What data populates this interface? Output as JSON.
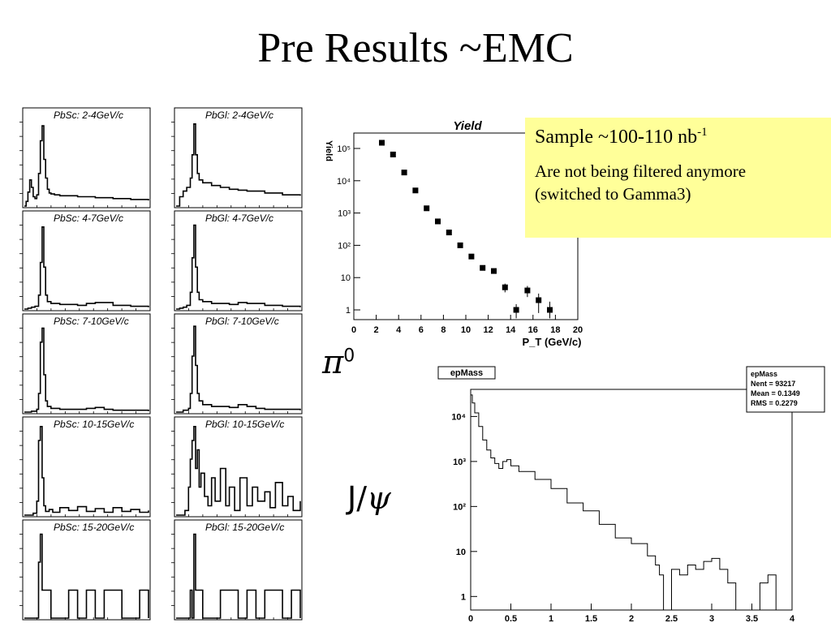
{
  "slide": {
    "title": "Pre Results ~EMC"
  },
  "note": {
    "line1_main": "Sample ~100-110 nb",
    "line1_sup": "-1",
    "line2": "Are not being filtered anymore",
    "line3": "(switched to Gamma3)"
  },
  "labels": {
    "pi0_symbol": "π",
    "pi0_sup": "0",
    "jpsi_prefix": "J/",
    "jpsi_symbol": "ψ"
  },
  "chart_data": [
    {
      "type": "line",
      "title": "PbSc: 2-4GeV/c",
      "x": [
        0,
        0.01,
        0.02,
        0.03,
        0.04,
        0.05,
        0.06,
        0.07,
        0.08,
        0.09,
        0.1,
        0.11,
        0.12,
        0.13,
        0.14,
        0.15,
        0.17,
        0.2,
        0.25,
        0.3,
        0.35,
        0.4,
        0.45,
        0.5,
        0.55,
        0.6,
        0.7
      ],
      "values": [
        0,
        5,
        15,
        28,
        20,
        10,
        8,
        12,
        35,
        70,
        86,
        50,
        30,
        18,
        14,
        13,
        12,
        11,
        11,
        10,
        10,
        9,
        9,
        8,
        8,
        7,
        6
      ],
      "ylim": [
        0,
        100
      ]
    },
    {
      "type": "line",
      "title": "PbGl: 2-4GeV/c",
      "x": [
        0,
        0.02,
        0.04,
        0.06,
        0.08,
        0.09,
        0.1,
        0.11,
        0.12,
        0.13,
        0.15,
        0.2,
        0.25,
        0.3,
        0.35,
        0.4,
        0.5,
        0.6,
        0.7
      ],
      "values": [
        0,
        10,
        16,
        20,
        30,
        55,
        88,
        55,
        35,
        28,
        25,
        22,
        20,
        18,
        17,
        16,
        14,
        12,
        11
      ],
      "ylim": [
        0,
        100
      ]
    },
    {
      "type": "line",
      "title": "PbSc: 4-7GeV/c",
      "x": [
        0,
        0.02,
        0.04,
        0.06,
        0.08,
        0.09,
        0.1,
        0.11,
        0.12,
        0.13,
        0.15,
        0.2,
        0.3,
        0.35,
        0.4,
        0.5,
        0.6,
        0.7
      ],
      "values": [
        0,
        1,
        2,
        3,
        15,
        50,
        88,
        45,
        15,
        8,
        6,
        5,
        4,
        6,
        7,
        4,
        3,
        2
      ],
      "ylim": [
        0,
        100
      ]
    },
    {
      "type": "line",
      "title": "PbGl: 4-7GeV/c",
      "x": [
        0,
        0.02,
        0.04,
        0.06,
        0.08,
        0.09,
        0.1,
        0.11,
        0.12,
        0.13,
        0.15,
        0.2,
        0.3,
        0.35,
        0.4,
        0.5,
        0.6,
        0.7
      ],
      "values": [
        0,
        1,
        2,
        4,
        18,
        55,
        90,
        45,
        18,
        10,
        8,
        6,
        5,
        7,
        6,
        4,
        3,
        2
      ],
      "ylim": [
        0,
        100
      ]
    },
    {
      "type": "line",
      "title": "PbSc: 7-10GeV/c",
      "x": [
        0,
        0.04,
        0.07,
        0.08,
        0.09,
        0.1,
        0.11,
        0.12,
        0.13,
        0.15,
        0.2,
        0.3,
        0.35,
        0.4,
        0.45,
        0.5,
        0.6,
        0.7
      ],
      "values": [
        0,
        1,
        3,
        20,
        75,
        90,
        40,
        12,
        6,
        4,
        3,
        3,
        4,
        5,
        3,
        2,
        2,
        1
      ],
      "ylim": [
        0,
        100
      ]
    },
    {
      "type": "line",
      "title": "PbGl: 7-10GeV/c",
      "x": [
        0,
        0.04,
        0.07,
        0.08,
        0.09,
        0.1,
        0.11,
        0.12,
        0.13,
        0.15,
        0.2,
        0.3,
        0.35,
        0.4,
        0.45,
        0.5,
        0.6,
        0.7
      ],
      "values": [
        0,
        2,
        4,
        20,
        60,
        92,
        50,
        20,
        12,
        8,
        6,
        5,
        8,
        6,
        4,
        3,
        3,
        2
      ],
      "ylim": [
        0,
        100
      ]
    },
    {
      "type": "line",
      "title": "PbSc: 10-15GeV/c",
      "x": [
        0,
        0.05,
        0.07,
        0.08,
        0.09,
        0.1,
        0.11,
        0.12,
        0.14,
        0.16,
        0.2,
        0.25,
        0.3,
        0.35,
        0.4,
        0.45,
        0.5,
        0.55,
        0.6,
        0.65,
        0.7
      ],
      "values": [
        0,
        2,
        15,
        80,
        95,
        40,
        10,
        4,
        6,
        3,
        8,
        5,
        9,
        4,
        7,
        3,
        8,
        4,
        6,
        3,
        5
      ],
      "ylim": [
        0,
        100
      ]
    },
    {
      "type": "line",
      "title": "PbGl: 10-15GeV/c",
      "x": [
        0,
        0.05,
        0.07,
        0.08,
        0.09,
        0.1,
        0.11,
        0.12,
        0.13,
        0.14,
        0.16,
        0.18,
        0.2,
        0.22,
        0.25,
        0.28,
        0.3,
        0.33,
        0.36,
        0.4,
        0.43,
        0.46,
        0.5,
        0.53,
        0.56,
        0.6,
        0.63,
        0.66,
        0.7
      ],
      "values": [
        0,
        5,
        30,
        60,
        80,
        95,
        50,
        70,
        30,
        45,
        20,
        10,
        40,
        15,
        50,
        10,
        30,
        5,
        40,
        10,
        30,
        15,
        25,
        8,
        35,
        10,
        20,
        5,
        15
      ],
      "ylim": [
        0,
        100
      ]
    },
    {
      "type": "line",
      "title": "PbSc: 15-20GeV/c",
      "x": [
        0,
        0.07,
        0.08,
        0.09,
        0.1,
        0.11,
        0.13,
        0.15,
        0.2,
        0.25,
        0.3,
        0.35,
        0.4,
        0.45,
        0.5,
        0.55,
        0.6,
        0.65,
        0.7
      ],
      "values": [
        0,
        0,
        60,
        90,
        30,
        30,
        30,
        0,
        0,
        30,
        0,
        30,
        0,
        30,
        30,
        0,
        0,
        30,
        0
      ],
      "ylim": [
        0,
        100
      ]
    },
    {
      "type": "line",
      "title": "PbGl: 15-20GeV/c",
      "x": [
        0,
        0.07,
        0.08,
        0.09,
        0.1,
        0.11,
        0.13,
        0.15,
        0.2,
        0.25,
        0.3,
        0.35,
        0.4,
        0.45,
        0.5,
        0.55,
        0.6,
        0.65,
        0.7
      ],
      "values": [
        0,
        0,
        30,
        0,
        90,
        30,
        30,
        0,
        0,
        30,
        30,
        0,
        30,
        0,
        30,
        30,
        0,
        30,
        0
      ],
      "ylim": [
        0,
        100
      ]
    },
    {
      "type": "scatter",
      "title": "Yield",
      "xlabel": "P_T (GeV/c)",
      "ylabel": "Yield",
      "xlim": [
        0,
        20
      ],
      "ylim": [
        0.5,
        300000
      ],
      "log_y": true,
      "x_ticks": [
        0,
        2,
        4,
        6,
        8,
        10,
        12,
        14,
        16,
        18,
        20
      ],
      "y_ticks": [
        "1",
        "10",
        "10²",
        "10³",
        "10⁴",
        "10⁵"
      ],
      "x": [
        2.5,
        3.5,
        4.5,
        5.5,
        6.5,
        7.5,
        8.5,
        9.5,
        10.5,
        11.5,
        12.5,
        13.5,
        14.5,
        15.5,
        16.5,
        17.5
      ],
      "values": [
        150000,
        65000,
        18000,
        5000,
        1400,
        550,
        250,
        100,
        45,
        20,
        16,
        5,
        1,
        4,
        2,
        1
      ],
      "errors": [
        0,
        0,
        0,
        0,
        0,
        0,
        0,
        0,
        0,
        0,
        0,
        1.5,
        0.5,
        1.5,
        1.2,
        0.8
      ]
    },
    {
      "type": "line",
      "title": "epMass",
      "xlabel": "",
      "xlim": [
        0,
        4
      ],
      "ylim": [
        0.5,
        40000
      ],
      "log_y": true,
      "x_ticks": [
        "0",
        "0.5",
        "1",
        "1.5",
        "2",
        "2.5",
        "3",
        "3.5",
        "4"
      ],
      "y_ticks": [
        "1",
        "10",
        "10²",
        "10³",
        "10⁴"
      ],
      "stats": {
        "name": "epMass",
        "nent": "Nent = 93217",
        "mean": "Mean  = 0.1349",
        "rms": "RMS   = 0.2279"
      },
      "x": [
        0,
        0.02,
        0.05,
        0.1,
        0.15,
        0.2,
        0.25,
        0.3,
        0.35,
        0.4,
        0.45,
        0.5,
        0.6,
        0.8,
        1,
        1.2,
        1.4,
        1.6,
        1.8,
        2,
        2.2,
        2.3,
        2.35,
        2.4,
        2.5,
        2.6,
        2.7,
        2.8,
        2.9,
        3,
        3.1,
        3.2,
        3.3,
        3.5,
        3.6,
        3.7,
        3.8,
        4
      ],
      "values": [
        30000,
        20000,
        12000,
        6000,
        3000,
        1800,
        1200,
        900,
        700,
        1000,
        1100,
        800,
        600,
        400,
        250,
        120,
        80,
        40,
        20,
        15,
        8,
        5,
        3,
        0,
        4,
        3,
        5,
        4,
        6,
        7,
        4,
        2,
        0,
        0,
        2,
        3,
        0,
        0
      ]
    }
  ]
}
